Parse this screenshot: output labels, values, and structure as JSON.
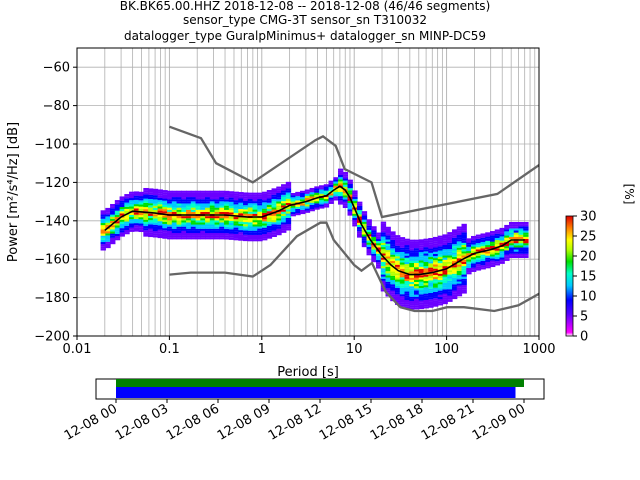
{
  "title": {
    "line1": "BK.BK65.00.HHZ   2018-12-08 -- 2018-12-08  (46/46 segments)",
    "line2": "sensor_type CMG-3T sensor_sn T310032",
    "line3": "datalogger_type GuralpMinimus+ datalogger_sn MINP-DC59"
  },
  "colorbar": {
    "label": "[%]",
    "ticks": [
      "0",
      "5",
      "10",
      "15",
      "20",
      "25",
      "30"
    ]
  },
  "coverage": {
    "ticks": [
      "12-08 00",
      "12-08 03",
      "12-08 06",
      "12-08 09",
      "12-08 12",
      "12-08 15",
      "12-08 18",
      "12-08 21",
      "12-09 00"
    ],
    "green_hours": [
      0,
      24
    ],
    "blue_hours": [
      0,
      23.5
    ],
    "colors": {
      "green": "#008000",
      "blue": "#0000ff"
    }
  },
  "chart_data": {
    "type": "heatmap",
    "xlabel": "Period [s]",
    "ylabel": "Power [m²/s⁴/Hz] [dB]",
    "xscale": "log",
    "xlim": [
      0.01,
      1000
    ],
    "ylim": [
      -200,
      -50
    ],
    "xticks": [
      "0.01",
      "0.1",
      "1",
      "10",
      "100",
      "1000"
    ],
    "yticks": [
      "−200",
      "−180",
      "−160",
      "−140",
      "−120",
      "−100",
      "−80",
      "−60"
    ],
    "grid": true,
    "nhnm": [
      [
        0.1,
        -168
      ],
      [
        0.17,
        -167
      ],
      [
        0.4,
        -167
      ],
      [
        0.8,
        -169
      ],
      [
        1.24,
        -163
      ],
      [
        2.4,
        -148
      ],
      [
        4.3,
        -141
      ],
      [
        5.0,
        -141
      ],
      [
        6.0,
        -150
      ],
      [
        10,
        -163
      ],
      [
        12,
        -166
      ],
      [
        15.6,
        -162
      ],
      [
        21.9,
        -177
      ],
      [
        31.6,
        -185
      ],
      [
        45,
        -187
      ],
      [
        70,
        -187
      ],
      [
        101,
        -185
      ],
      [
        154,
        -185
      ],
      [
        328,
        -187
      ],
      [
        600,
        -184
      ],
      [
        1000,
        -178
      ]
    ],
    "nlnm": [
      [
        0.1,
        -91
      ],
      [
        0.22,
        -97
      ],
      [
        0.32,
        -110
      ],
      [
        0.8,
        -120
      ],
      [
        3.8,
        -98
      ],
      [
        4.6,
        -96
      ],
      [
        6.3,
        -101
      ],
      [
        7.9,
        -113
      ],
      [
        15.4,
        -120
      ],
      [
        20,
        -138
      ],
      [
        354.8,
        -126
      ],
      [
        1000,
        -111
      ]
    ],
    "mode": [
      [
        0.02,
        -145
      ],
      [
        0.03,
        -138
      ],
      [
        0.04,
        -135
      ],
      [
        0.07,
        -136
      ],
      [
        0.1,
        -137
      ],
      [
        0.2,
        -137
      ],
      [
        0.4,
        -137
      ],
      [
        0.7,
        -138
      ],
      [
        1,
        -138
      ],
      [
        1.5,
        -135
      ],
      [
        2,
        -132
      ],
      [
        3,
        -130
      ],
      [
        4,
        -128
      ],
      [
        5,
        -127
      ],
      [
        6,
        -124
      ],
      [
        7,
        -122
      ],
      [
        8,
        -124
      ],
      [
        9,
        -128
      ],
      [
        10,
        -133
      ],
      [
        12,
        -142
      ],
      [
        15,
        -150
      ],
      [
        20,
        -158
      ],
      [
        25,
        -163
      ],
      [
        30,
        -166
      ],
      [
        40,
        -168
      ],
      [
        50,
        -168
      ],
      [
        70,
        -167
      ],
      [
        100,
        -165
      ],
      [
        150,
        -160
      ],
      [
        200,
        -157
      ],
      [
        300,
        -155
      ],
      [
        400,
        -153
      ],
      [
        500,
        -150
      ],
      [
        600,
        -150
      ],
      [
        700,
        -150
      ]
    ],
    "color_range": [
      0,
      30
    ]
  }
}
